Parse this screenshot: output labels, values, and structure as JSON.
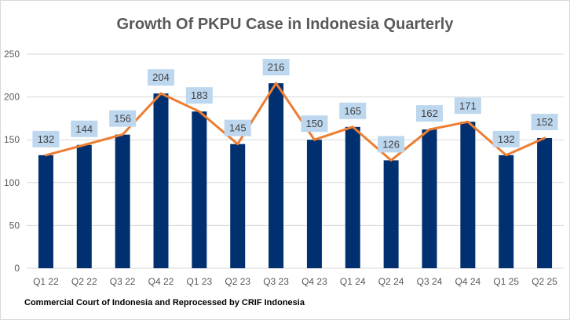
{
  "chart_data": {
    "type": "bar",
    "title": "Growth Of PKPU Case in Indonesia Quarterly",
    "categories": [
      "Q1 22",
      "Q2 22",
      "Q3 22",
      "Q4 22",
      "Q1 23",
      "Q2 23",
      "Q3 23",
      "Q4 23",
      "Q1 24",
      "Q2 24",
      "Q3 24",
      "Q4 24",
      "Q1 25",
      "Q2 25"
    ],
    "values": [
      132,
      144,
      156,
      204,
      183,
      145,
      216,
      150,
      165,
      126,
      162,
      171,
      132,
      152
    ],
    "ylim": [
      0,
      250
    ],
    "yticks": [
      0,
      50,
      100,
      150,
      200,
      250
    ],
    "grid": true,
    "overlay_line": true,
    "data_labels": true,
    "colors": {
      "bar": "#003070",
      "line": "#ED7D31",
      "label_box": "#BDD7EE",
      "grid": "#d9d9d9"
    },
    "source_note": "Commercial Court of Indonesia and Reprocessed by CRIF Indonesia"
  }
}
